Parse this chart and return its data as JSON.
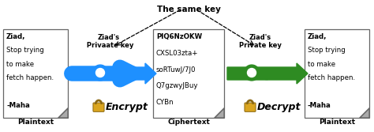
{
  "title": "The same key",
  "bg_color": "#ffffff",
  "doc_color": "#ffffff",
  "doc_edge_color": "#666666",
  "plaintext_left": [
    "Ziad,",
    "Stop trying",
    "to make",
    "fetch happen.",
    "",
    "-Maha"
  ],
  "ciphertext": [
    "PIQ6NzOKW",
    "CXSL03zta+",
    "soRTuwJ/7J0",
    "Q7gzwyJBuy",
    "CYBn"
  ],
  "plaintext_right": [
    "Ziad,",
    "Stop trying",
    "to make",
    "fetch happen.",
    "",
    "-Maha"
  ],
  "label_plaintext_left": "Plaintext",
  "label_ciphertext": "Ciphertext",
  "label_plaintext_right": "Plaintext",
  "label_key_left": "Ziad's\n Privaate key",
  "label_key_right": "Ziad's\nPrivate key",
  "label_encrypt": "Encrypt",
  "label_decrypt": "Decrypt",
  "arrow_encrypt_color": "#1e90ff",
  "arrow_decrypt_color": "#2e8b22",
  "key_left_color": "#1e90ff",
  "key_right_color": "#2e8b22",
  "lock_body_color": "#DAA520",
  "lock_edge_color": "#8B6914"
}
